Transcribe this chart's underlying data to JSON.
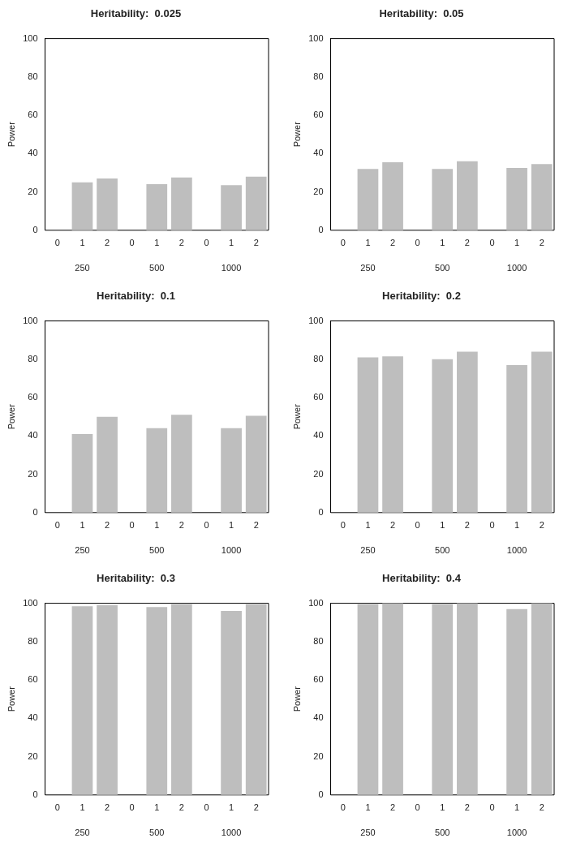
{
  "chart_data": [
    {
      "type": "bar",
      "title": "Heritability:  0.025",
      "ylabel": "Power",
      "categories": [
        "0",
        "1",
        "2",
        "0",
        "1",
        "2",
        "0",
        "1",
        "2"
      ],
      "values": [
        0,
        25,
        27,
        0,
        24,
        27.5,
        0,
        23.5,
        28
      ],
      "color": "#bebebe",
      "ylim": [
        0,
        100
      ],
      "yticks": [
        0,
        20,
        40,
        60,
        80,
        100
      ],
      "annotations": [
        "250",
        "500",
        "1000"
      ]
    },
    {
      "type": "bar",
      "title": "Heritability:  0.05",
      "ylabel": "Power",
      "categories": [
        "0",
        "1",
        "2",
        "0",
        "1",
        "2",
        "0",
        "1",
        "2"
      ],
      "values": [
        0,
        32,
        35.5,
        0,
        32,
        36,
        0,
        32.5,
        34.5
      ],
      "color": "#bebebe",
      "ylim": [
        0,
        100
      ],
      "yticks": [
        0,
        20,
        40,
        60,
        80,
        100
      ],
      "annotations": [
        "250",
        "500",
        "1000"
      ]
    },
    {
      "type": "bar",
      "title": "Heritability:  0.1",
      "ylabel": "Power",
      "categories": [
        "0",
        "1",
        "2",
        "0",
        "1",
        "2",
        "0",
        "1",
        "2"
      ],
      "values": [
        0,
        41,
        50,
        0,
        44,
        51,
        0,
        44,
        50.5
      ],
      "color": "#bebebe",
      "ylim": [
        0,
        100
      ],
      "yticks": [
        0,
        20,
        40,
        60,
        80,
        100
      ],
      "annotations": [
        "250",
        "500",
        "1000"
      ]
    },
    {
      "type": "bar",
      "title": "Heritability:  0.2",
      "ylabel": "Power",
      "categories": [
        "0",
        "1",
        "2",
        "0",
        "1",
        "2",
        "0",
        "1",
        "2"
      ],
      "values": [
        0,
        81,
        81.5,
        0,
        80,
        84,
        0,
        77,
        84
      ],
      "color": "#bebebe",
      "ylim": [
        0,
        100
      ],
      "yticks": [
        0,
        20,
        40,
        60,
        80,
        100
      ],
      "annotations": [
        "250",
        "500",
        "1000"
      ]
    },
    {
      "type": "bar",
      "title": "Heritability:  0.3",
      "ylabel": "Power",
      "categories": [
        "0",
        "1",
        "2",
        "0",
        "1",
        "2",
        "0",
        "1",
        "2"
      ],
      "values": [
        0,
        98.5,
        99,
        0,
        98,
        99.5,
        0,
        96,
        99.5
      ],
      "color": "#bebebe",
      "ylim": [
        0,
        100
      ],
      "yticks": [
        0,
        20,
        40,
        60,
        80,
        100
      ],
      "annotations": [
        "250",
        "500",
        "1000"
      ]
    },
    {
      "type": "bar",
      "title": "Heritability:  0.4",
      "ylabel": "Power",
      "categories": [
        "0",
        "1",
        "2",
        "0",
        "1",
        "2",
        "0",
        "1",
        "2"
      ],
      "values": [
        0,
        99.5,
        100,
        0,
        99.5,
        100,
        0,
        97,
        100
      ],
      "color": "#bebebe",
      "ylim": [
        0,
        100
      ],
      "yticks": [
        0,
        20,
        40,
        60,
        80,
        100
      ],
      "annotations": [
        "250",
        "500",
        "1000"
      ]
    }
  ]
}
